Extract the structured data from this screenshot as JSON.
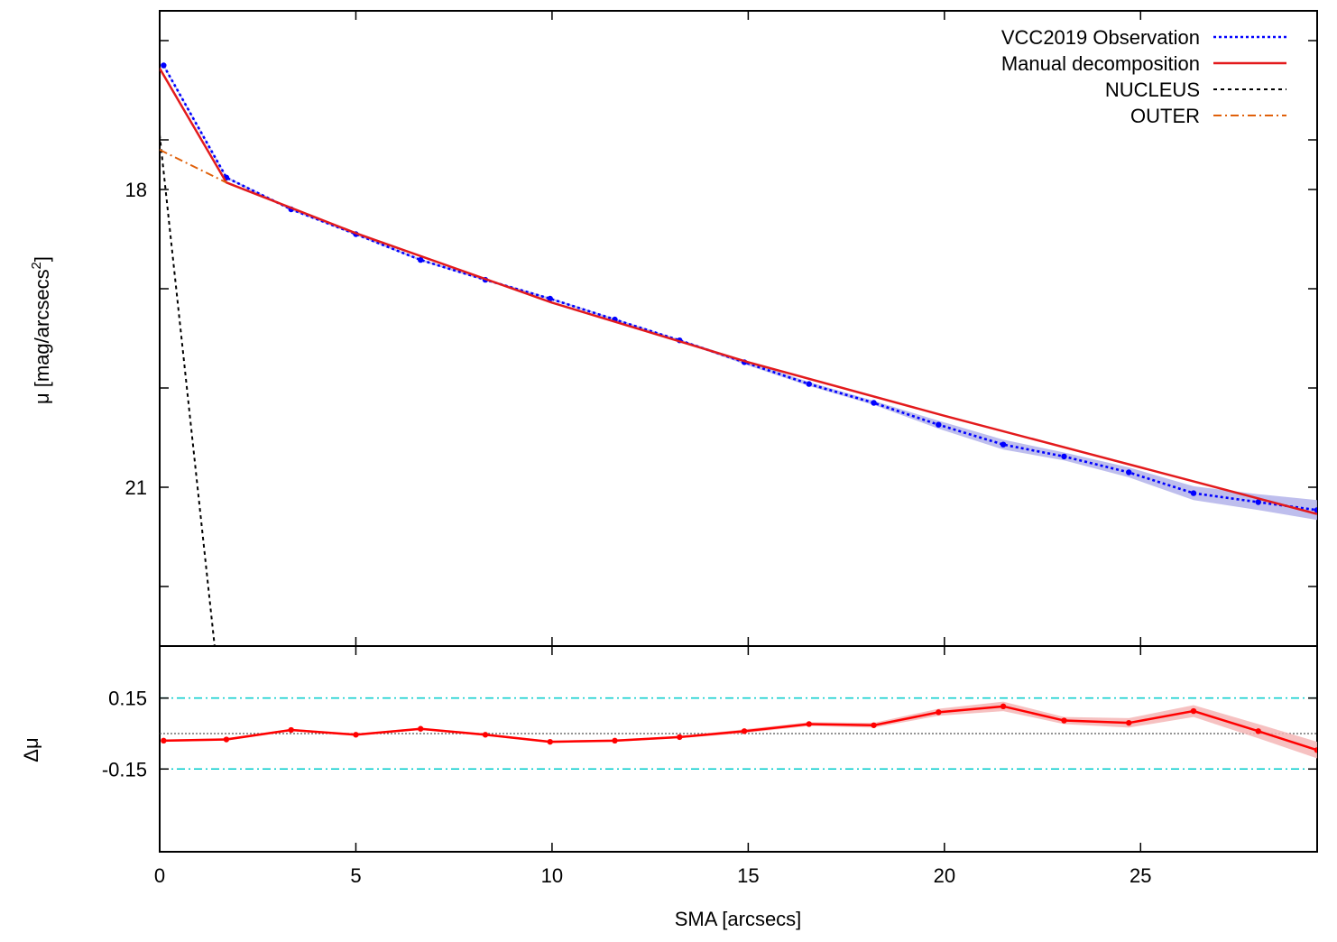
{
  "chart_data": {
    "type": "line",
    "xlabel": "SMA [arcsecs]",
    "xlim": [
      0,
      29.5
    ],
    "x_ticks": [
      0,
      5,
      10,
      15,
      20,
      25
    ],
    "x_tick_labels": [
      "0",
      "5",
      "10",
      "15",
      "20",
      "25"
    ],
    "top_panel": {
      "ylabel_main": "μ [mag/arcsecs",
      "ylabel_sup": "2",
      "ylabel_close": "]",
      "ylim": [
        16.2,
        22.6
      ],
      "y_reversed": true,
      "y_ticks": [
        16.5,
        17.5,
        18,
        19,
        20,
        21,
        22
      ],
      "y_tick_labels": [
        "",
        "",
        "18",
        "",
        "",
        "21",
        ""
      ],
      "legend_position": "top-right",
      "series": [
        {
          "name": "VCC2019 Observation",
          "style": "dotted-with-points",
          "color": "#0000ff",
          "band_color": "#b3b3ea",
          "x": [
            0.1,
            1.7,
            3.35,
            5.0,
            6.65,
            8.3,
            9.95,
            11.6,
            13.25,
            14.9,
            16.55,
            18.2,
            19.85,
            21.5,
            23.05,
            24.7,
            26.35,
            28.0,
            29.5
          ],
          "y": [
            16.75,
            17.88,
            18.2,
            18.45,
            18.71,
            18.91,
            19.1,
            19.31,
            19.52,
            19.74,
            19.96,
            20.15,
            20.37,
            20.57,
            20.69,
            20.85,
            21.06,
            21.15,
            21.23
          ],
          "err": [
            0.01,
            0.01,
            0.01,
            0.01,
            0.01,
            0.01,
            0.01,
            0.01,
            0.01,
            0.02,
            0.02,
            0.02,
            0.04,
            0.05,
            0.04,
            0.05,
            0.07,
            0.08,
            0.1
          ]
        },
        {
          "name": "Manual decomposition",
          "style": "solid",
          "color": "#e31a1c",
          "x": [
            0,
            1.7,
            5.0,
            10.0,
            15.0,
            20.0,
            25.0,
            29.5
          ],
          "y": [
            16.78,
            17.93,
            18.44,
            19.14,
            19.74,
            20.28,
            20.8,
            21.27
          ]
        },
        {
          "name": "NUCLEUS",
          "style": "dashed",
          "color": "#000000",
          "x": [
            0,
            1.4
          ],
          "y": [
            17.45,
            22.6
          ]
        },
        {
          "name": "OUTER",
          "style": "dash-dot",
          "color": "#e0600a",
          "x": [
            0,
            1.7
          ],
          "y": [
            17.6,
            17.93
          ]
        }
      ]
    },
    "bottom_panel": {
      "ylabel": "Δμ",
      "ylim": [
        -0.5,
        0.37
      ],
      "y_ticks": [
        0.15,
        -0.15
      ],
      "y_tick_labels": [
        "0.15",
        "-0.15"
      ],
      "reference_lines": [
        {
          "y": 0.15,
          "style": "dash-dot",
          "color": "#00cccc"
        },
        {
          "y": -0.15,
          "style": "dash-dot",
          "color": "#00cccc"
        },
        {
          "y": 0.0,
          "style": "dotted",
          "color": "#555555"
        }
      ],
      "series": [
        {
          "name": "",
          "style": "solid-with-points",
          "color": "#ff0000",
          "band_color": "#f4b6b6",
          "x": [
            0.1,
            1.7,
            3.35,
            5.0,
            6.65,
            8.3,
            9.95,
            11.6,
            13.25,
            14.9,
            16.55,
            18.2,
            19.85,
            21.5,
            23.05,
            24.7,
            26.35,
            28.0,
            29.5
          ],
          "y": [
            -0.03,
            -0.025,
            0.015,
            -0.005,
            0.02,
            -0.005,
            -0.035,
            -0.03,
            -0.015,
            0.01,
            0.04,
            0.035,
            0.09,
            0.115,
            0.055,
            0.045,
            0.095,
            0.01,
            -0.07
          ],
          "err": [
            0.005,
            0.005,
            0.005,
            0.005,
            0.005,
            0.005,
            0.005,
            0.005,
            0.005,
            0.008,
            0.008,
            0.01,
            0.015,
            0.02,
            0.015,
            0.02,
            0.025,
            0.03,
            0.035
          ]
        }
      ]
    }
  }
}
